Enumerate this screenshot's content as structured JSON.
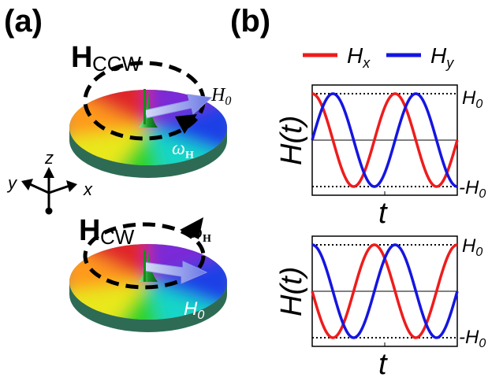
{
  "panels": {
    "a": {
      "label": "(a)"
    },
    "b": {
      "label": "(b)"
    }
  },
  "panel_a": {
    "ccw": {
      "label_main": "H",
      "label_sub": "CCW",
      "amplitude_label": "H",
      "amplitude_sub": "0",
      "omega_label": "ω",
      "omega_sub": "H"
    },
    "cw": {
      "label_main": "H",
      "label_sub": "CW",
      "amplitude_label": "H",
      "amplitude_sub": "0",
      "omega_label": "ω",
      "omega_sub": "H"
    },
    "axes": {
      "z": "z",
      "y": "y",
      "x": "x"
    }
  },
  "legend": {
    "items": [
      {
        "name": "H",
        "sub": "x",
        "color": "#ee1c1c"
      },
      {
        "name": "H",
        "sub": "y",
        "color": "#1515e0"
      }
    ]
  },
  "chart_data": [
    {
      "type": "line",
      "title": "",
      "ylabel": "H(t)",
      "xlabel": "t",
      "ytick_top": "H0",
      "ytick_bottom": "-H0",
      "ylim": [
        -1.1,
        1.1
      ],
      "xlim": [
        0,
        1
      ],
      "series": [
        {
          "name": "Hx",
          "color": "#ee1c1c",
          "function": "cos",
          "cycles": 1.75,
          "phase": 0,
          "sign": 1
        },
        {
          "name": "Hy",
          "color": "#1515e0",
          "function": "sin",
          "cycles": 1.75,
          "phase": 0,
          "sign": 1
        }
      ]
    },
    {
      "type": "line",
      "title": "",
      "ylabel": "H(t)",
      "xlabel": "t",
      "ytick_top": "H0",
      "ytick_bottom": "-H0",
      "ylim": [
        -1.1,
        1.1
      ],
      "xlim": [
        0,
        1
      ],
      "series": [
        {
          "name": "Hx",
          "color": "#ee1c1c",
          "function": "sin",
          "cycles": 1.75,
          "phase": 0,
          "sign": -1
        },
        {
          "name": "Hy",
          "color": "#1515e0",
          "function": "cos",
          "cycles": 1.75,
          "phase": 0,
          "sign": 1
        }
      ]
    }
  ]
}
